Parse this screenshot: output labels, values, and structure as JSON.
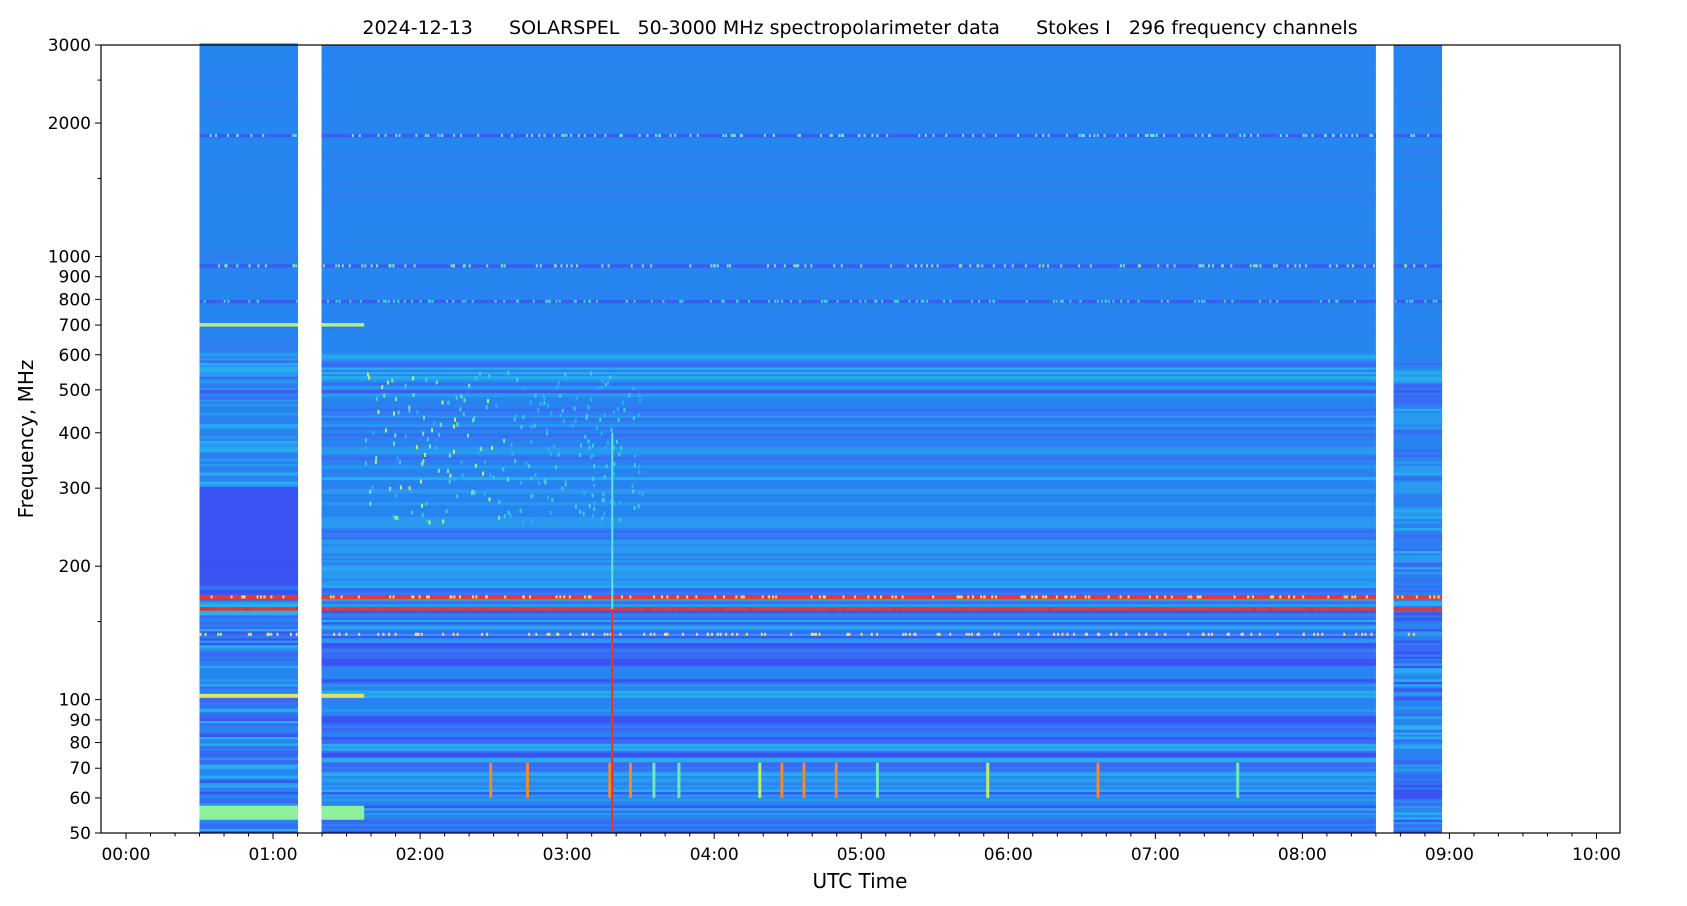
{
  "chart_data": {
    "type": "heatmap",
    "title": "2024-12-13      SOLARSPEL   50-3000 MHz spectropolarimeter data      Stokes I   296 frequency channels",
    "xlabel": "UTC Time",
    "ylabel": "Frequency, MHz",
    "x_unit": "hours UTC",
    "xlim": [
      -0.17,
      10.16
    ],
    "ylim": [
      50,
      3000
    ],
    "yscale": "log",
    "x_ticks": [
      {
        "v": 0,
        "label": "00:00"
      },
      {
        "v": 1,
        "label": "01:00"
      },
      {
        "v": 2,
        "label": "02:00"
      },
      {
        "v": 3,
        "label": "03:00"
      },
      {
        "v": 4,
        "label": "04:00"
      },
      {
        "v": 5,
        "label": "05:00"
      },
      {
        "v": 6,
        "label": "06:00"
      },
      {
        "v": 7,
        "label": "07:00"
      },
      {
        "v": 8,
        "label": "08:00"
      },
      {
        "v": 9,
        "label": "09:00"
      },
      {
        "v": 10,
        "label": "10:00"
      }
    ],
    "y_ticks": [
      {
        "v": 50,
        "label": "50"
      },
      {
        "v": 60,
        "label": "60"
      },
      {
        "v": 70,
        "label": "70"
      },
      {
        "v": 80,
        "label": "80"
      },
      {
        "v": 90,
        "label": "90"
      },
      {
        "v": 100,
        "label": "100"
      },
      {
        "v": 200,
        "label": "200"
      },
      {
        "v": 300,
        "label": "300"
      },
      {
        "v": 400,
        "label": "400"
      },
      {
        "v": 500,
        "label": "500"
      },
      {
        "v": 600,
        "label": "600"
      },
      {
        "v": 700,
        "label": "700"
      },
      {
        "v": 800,
        "label": "800"
      },
      {
        "v": 900,
        "label": "900"
      },
      {
        "v": 1000,
        "label": "1000"
      },
      {
        "v": 2000,
        "label": "2000"
      },
      {
        "v": 3000,
        "label": "3000"
      }
    ],
    "data_segments_hours": [
      [
        0.5,
        1.17
      ],
      [
        1.33,
        8.5
      ],
      [
        8.62,
        8.95
      ]
    ],
    "features": [
      {
        "name": "interference-1870",
        "freq": 1870,
        "t": [
          0.5,
          8.95
        ],
        "color": "#3f5cf0"
      },
      {
        "name": "interference-950",
        "freq": 950,
        "t": [
          0.5,
          8.95
        ],
        "color": "#3f5cf0"
      },
      {
        "name": "interference-790",
        "freq": 790,
        "t": [
          0.5,
          8.95
        ],
        "color": "#3f5cf0"
      },
      {
        "name": "band-700",
        "freq": 700,
        "t": [
          0.5,
          1.62
        ],
        "color": "#b8f070"
      },
      {
        "name": "interference-495",
        "freq": 495,
        "t": [
          0.5,
          8.95
        ],
        "color": "#3f5cf0"
      },
      {
        "name": "interference-170",
        "freq": 170,
        "t": [
          0.5,
          8.95
        ],
        "color": "#e83a2a"
      },
      {
        "name": "interference-160",
        "freq": 160,
        "t": [
          0.5,
          8.95
        ],
        "color": "#e83a2a"
      },
      {
        "name": "band-102",
        "freq": 102,
        "t": [
          0.5,
          1.62
        ],
        "color": "#e8e060"
      },
      {
        "name": "band-57",
        "freq": 57,
        "t": [
          0.5,
          1.62
        ],
        "color": "#8ff09a"
      }
    ],
    "colors": {
      "background": "#2586f0",
      "low": "#3d5cf2",
      "mid": "#28b4ee",
      "high": "#e82a20"
    }
  }
}
